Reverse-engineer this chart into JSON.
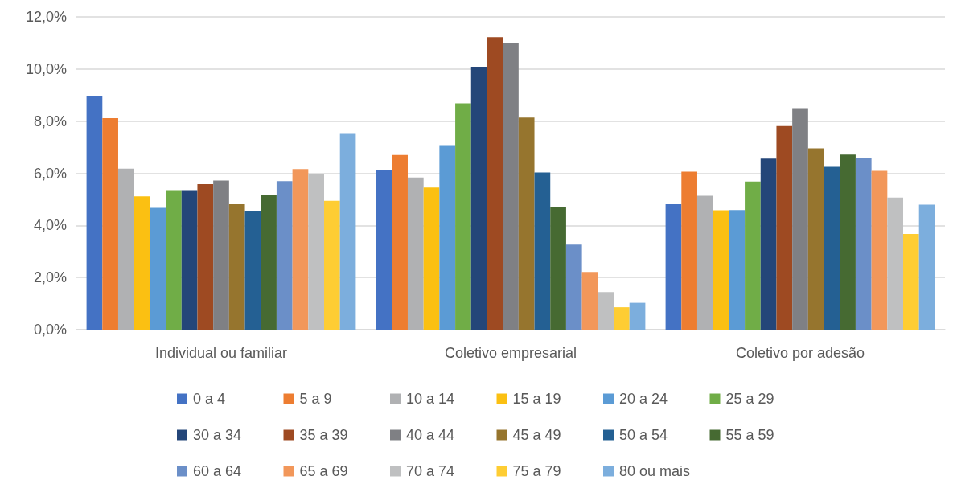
{
  "chart_data": {
    "type": "bar",
    "categories": [
      "Individual ou familiar",
      "Coletivo empresarial",
      "Coletivo por adesão"
    ],
    "series": [
      {
        "name": "0 a 4",
        "color": "#4472c4",
        "values": [
          8.97,
          6.12,
          4.81
        ]
      },
      {
        "name": "5 a 9",
        "color": "#ed7d31",
        "values": [
          8.11,
          6.7,
          6.06
        ]
      },
      {
        "name": "10 a 14",
        "color": "#b0b1b3",
        "values": [
          6.18,
          5.84,
          5.14
        ]
      },
      {
        "name": "15 a 19",
        "color": "#fbc012",
        "values": [
          5.11,
          5.45,
          4.58
        ]
      },
      {
        "name": "20 a 24",
        "color": "#5b9bd5",
        "values": [
          4.67,
          7.08,
          4.59
        ]
      },
      {
        "name": "25 a 29",
        "color": "#70ad47",
        "values": [
          5.35,
          8.68,
          5.68
        ]
      },
      {
        "name": "30 a 34",
        "color": "#244679",
        "values": [
          5.35,
          10.09,
          6.56
        ]
      },
      {
        "name": "35 a 39",
        "color": "#9e4a22",
        "values": [
          5.58,
          11.22,
          7.81
        ]
      },
      {
        "name": "40 a 44",
        "color": "#7f8084",
        "values": [
          5.72,
          10.99,
          8.5
        ]
      },
      {
        "name": "45 a 49",
        "color": "#96752e",
        "values": [
          4.81,
          8.14,
          6.96
        ]
      },
      {
        "name": "50 a 54",
        "color": "#246093",
        "values": [
          4.55,
          6.03,
          6.25
        ]
      },
      {
        "name": "55 a 59",
        "color": "#466a32",
        "values": [
          5.16,
          4.7,
          6.72
        ]
      },
      {
        "name": "60 a 64",
        "color": "#6b8fc8",
        "values": [
          5.7,
          3.26,
          6.59
        ]
      },
      {
        "name": "65 a 69",
        "color": "#f2975a",
        "values": [
          6.16,
          2.21,
          6.09
        ]
      },
      {
        "name": "70 a 74",
        "color": "#bfc0c1",
        "values": [
          5.96,
          1.44,
          5.07
        ]
      },
      {
        "name": "75 a 79",
        "color": "#fecd33",
        "values": [
          4.94,
          0.86,
          3.67
        ]
      },
      {
        "name": "80 ou mais",
        "color": "#7caedd",
        "values": [
          7.51,
          1.03,
          4.8
        ]
      }
    ],
    "ylim": [
      0,
      12
    ],
    "yticks": [
      {
        "value": 0,
        "label": "0,0%"
      },
      {
        "value": 2,
        "label": "2,0%"
      },
      {
        "value": 4,
        "label": "4,0%"
      },
      {
        "value": 6,
        "label": "6,0%"
      },
      {
        "value": 8,
        "label": "8,0%"
      },
      {
        "value": 10,
        "label": "10,0%"
      },
      {
        "value": 12,
        "label": "12,0%"
      }
    ],
    "grid": "y",
    "legend": "bottom"
  }
}
